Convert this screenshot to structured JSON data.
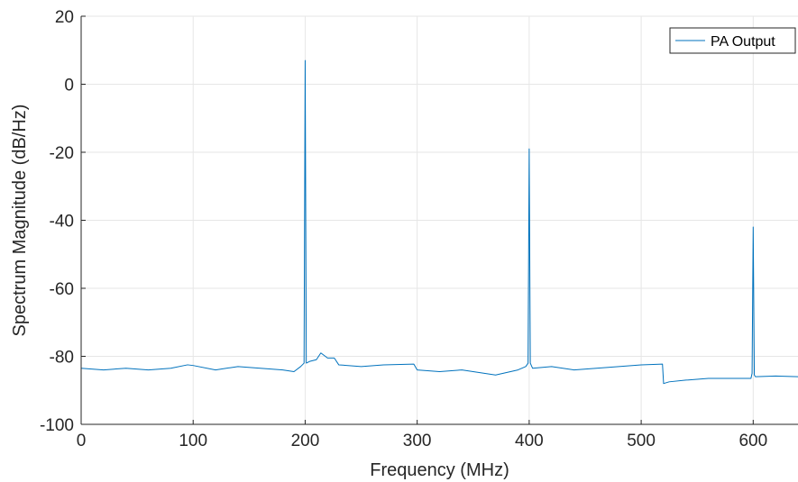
{
  "chart_data": {
    "type": "line",
    "title": "",
    "xlabel": "Frequency (MHz)",
    "ylabel": "Spectrum Magnitude (dB/Hz)",
    "xlim": [
      0,
      640
    ],
    "ylim": [
      -100,
      20
    ],
    "xticks": [
      0,
      100,
      200,
      300,
      400,
      500,
      600
    ],
    "yticks": [
      -100,
      -80,
      -60,
      -40,
      -20,
      0,
      20
    ],
    "grid": true,
    "legend_position": "top-right",
    "colors": {
      "series": "#0072BD",
      "grid": "#e6e6e6",
      "axis": "#262626"
    },
    "series": [
      {
        "name": "PA Output",
        "x": [
          0,
          20,
          40,
          60,
          80,
          95,
          100,
          120,
          140,
          160,
          180,
          190,
          196,
          199,
          200,
          201,
          204,
          210,
          214,
          216,
          220,
          226,
          230,
          250,
          270,
          297,
          300,
          320,
          340,
          370,
          390,
          397,
          399,
          400,
          401,
          403,
          420,
          440,
          460,
          480,
          500,
          519,
          520,
          525,
          540,
          560,
          580,
          598,
          599,
          600,
          601,
          602,
          620,
          640
        ],
        "y": [
          -83.5,
          -84,
          -83.5,
          -84,
          -83.5,
          -82.5,
          -82.7,
          -84,
          -83,
          -83.5,
          -84,
          -84.5,
          -83,
          -82,
          7,
          -82,
          -81.5,
          -81,
          -79,
          -79.5,
          -80.5,
          -80.5,
          -82.5,
          -83,
          -82.5,
          -82.3,
          -84,
          -84.5,
          -84,
          -85.5,
          -84,
          -83,
          -82,
          -19,
          -82,
          -83.5,
          -83,
          -84,
          -83.5,
          -83,
          -82.5,
          -82.3,
          -88,
          -87.5,
          -87,
          -86.5,
          -86.5,
          -86.5,
          -85,
          -42,
          -85.5,
          -86,
          -85.8,
          -86
        ]
      }
    ]
  }
}
